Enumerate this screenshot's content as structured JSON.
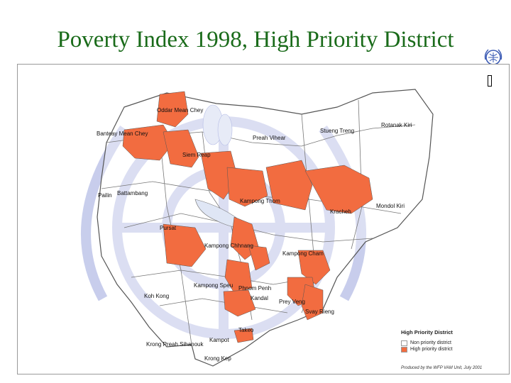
{
  "title": "Poverty Index 1998, High Priority District",
  "colors": {
    "high_priority": "#f26c40",
    "non_priority": "#ffffff",
    "border": "#555555",
    "watermark": "#b6bde6",
    "title": "#1a6b1a"
  },
  "labels": {
    "oddar_mean_chey": "Oddar Mean Chey",
    "banteay_mean_chey": "Banteay Mean Chey",
    "siem_reap": "Siem Reap",
    "preah_vihear": "Preah Vihear",
    "stueng_treng": "Stueng Treng",
    "rotanak_kiri": "Rotanak Kiri",
    "pailin": "Pailin",
    "battambang": "Battambang",
    "kampong_thom": "Kampong Thom",
    "kracheh": "Kracheh",
    "mondol_kiri": "Mondol Kiri",
    "pursat": "Pursat",
    "kampong_chhnang": "Kampong Chhnang",
    "kampong_cham": "Kampong Cham",
    "kampong_speu": "Kampong Speu",
    "phnom_penh": "Phnom Penh",
    "koh_kong": "Koh Kong",
    "kandal": "Kandal",
    "prey_veng": "Prey Veng",
    "svay_rieng": "Svay Rieng",
    "takeo": "Takeo",
    "kampot": "Kampot",
    "krong_preah_sihanouk": "Krong Preah Sihanouk",
    "krong_kep": "Krong Kep"
  },
  "legend": {
    "title": "High Priority District",
    "items": [
      {
        "label": "Non priority district",
        "color": "#ffffff"
      },
      {
        "label": "High priority district",
        "color": "#f26c40"
      }
    ]
  },
  "credit": "Produced by the WFP VAM Unit, July 2001"
}
